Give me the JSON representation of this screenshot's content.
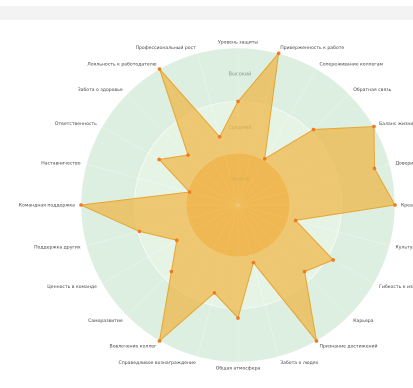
{
  "chart_data": {
    "type": "radar",
    "categories": [
      "Уровень защиты",
      "Приверженность к работе",
      "Сопереживание коллегам",
      "Обратная связь",
      "Баланс жизни",
      "Доверие",
      "Креативность",
      "Культура работы",
      "Гибкость к изменениям",
      "Карьера",
      "Признание достижений",
      "Забота о людях",
      "Общая атмосфера",
      "Справедливое вознаграждение",
      "Вовлечение коллег",
      "Саморазвитие",
      "Ценность в команде",
      "Поддержка других",
      "Командная поддержка",
      "Наставничество",
      "Ответственность",
      "Забота о здоровье",
      "Лояльность к работодателю",
      "Профессиональный рост"
    ],
    "values": [
      66,
      100,
      34,
      68,
      100,
      90,
      100,
      38,
      70,
      60,
      100,
      38,
      72,
      58,
      100,
      60,
      45,
      65,
      100,
      32,
      58,
      45,
      100,
      45
    ],
    "rlim": [
      0,
      100
    ],
    "rticks": [
      {
        "value": 33,
        "label": "Низкий"
      },
      {
        "value": 66,
        "label": "Средний"
      },
      {
        "value": 100,
        "label": "Высокий"
      }
    ],
    "color": "#f0b440",
    "point_color": "#f07a20",
    "ring_colors": [
      "#efc37c",
      "#e6f4e6",
      "#dcefe0"
    ]
  }
}
